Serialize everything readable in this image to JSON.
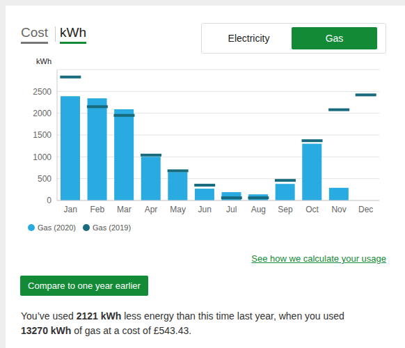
{
  "tabs": {
    "items": [
      "Cost",
      "kWh"
    ],
    "selected": "kWh"
  },
  "toggle": {
    "items": [
      "Electricity",
      "Gas"
    ],
    "selected": "Gas"
  },
  "chart_data": {
    "type": "bar",
    "ylabel": "kWh",
    "categories": [
      "Jan",
      "Feb",
      "Mar",
      "Apr",
      "May",
      "Jun",
      "Jul",
      "Aug",
      "Sep",
      "Oct",
      "Nov",
      "Dec"
    ],
    "series": [
      {
        "name": "Gas (2020)",
        "type": "bar",
        "color": "#29abe2",
        "values": [
          2390,
          2340,
          2090,
          1000,
          650,
          270,
          190,
          140,
          380,
          1300,
          290,
          null
        ]
      },
      {
        "name": "Gas (2019)",
        "type": "line",
        "line_style": "none",
        "marker": "dash",
        "color": "#176b7d",
        "values": [
          2830,
          2150,
          1950,
          1040,
          680,
          350,
          60,
          60,
          460,
          1370,
          2080,
          2420
        ]
      }
    ],
    "ylim": [
      0,
      3000
    ],
    "yticks": [
      0,
      500,
      1000,
      1500,
      2000,
      2500
    ],
    "grid": true,
    "legend": "bottom-left"
  },
  "link": "See how we calculate your usage",
  "button": "Compare to one year earlier",
  "summary": [
    "You’ve used ",
    "2121 kWh",
    " less energy than this time last year, when you used ",
    "13270 kWh",
    " of gas at a cost of £543.43."
  ]
}
